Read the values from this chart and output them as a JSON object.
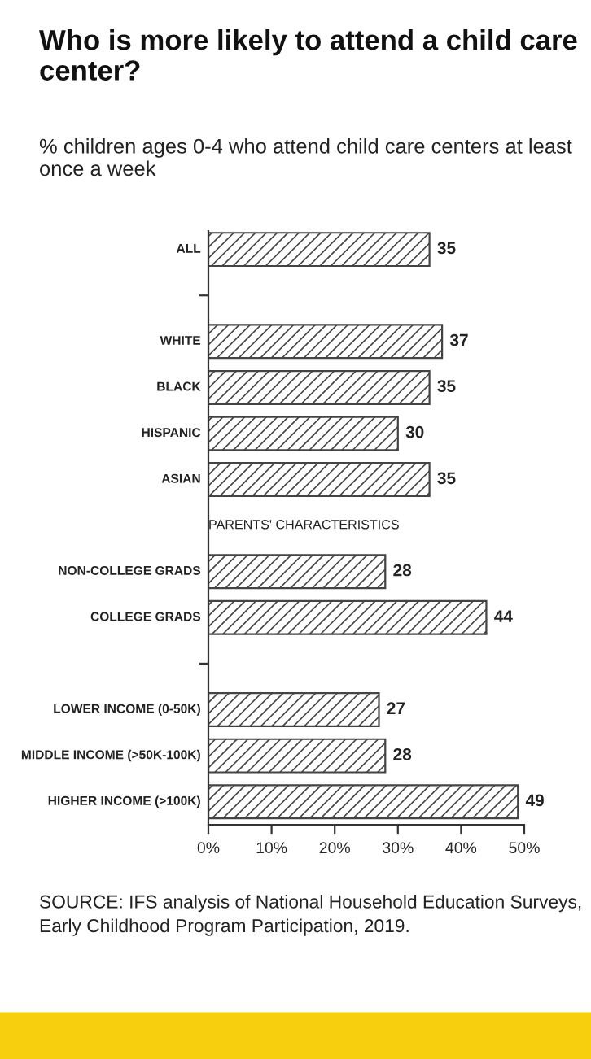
{
  "chart_data": {
    "type": "bar",
    "orientation": "horizontal",
    "title": "Who is more likely to attend a child care center?",
    "subtitle": "% children ages 0-4 who attend child care centers at least once a week",
    "categories": [
      "ALL",
      null,
      "WHITE",
      "BLACK",
      "HISPANIC",
      "ASIAN",
      "PARENTS' CHARACTERISTICS",
      "NON-COLLEGE GRADS",
      "COLLEGE GRADS",
      null,
      "LOWER INCOME (0-50K)",
      "MIDDLE INCOME (>50K-100K)",
      "HIGHER INCOME (>100K)"
    ],
    "values": [
      35,
      null,
      37,
      35,
      30,
      35,
      null,
      28,
      44,
      null,
      27,
      28,
      49
    ],
    "color": "#444444",
    "xlim": [
      0,
      50
    ],
    "xticks": [
      {
        "value": 0,
        "label": "0%"
      },
      {
        "value": 10,
        "label": "10%"
      },
      {
        "value": 20,
        "label": "20%"
      },
      {
        "value": 30,
        "label": "30%"
      },
      {
        "value": 40,
        "label": "40%"
      },
      {
        "value": 50,
        "label": "50%"
      }
    ],
    "data_labels": true,
    "grid": false,
    "annotations": [
      "SOURCE: IFS analysis of National Household Education Surveys, Early Childhood Program Participation, 2019."
    ]
  }
}
